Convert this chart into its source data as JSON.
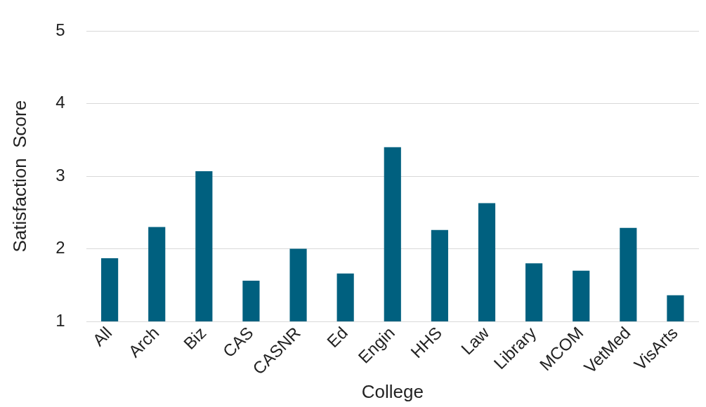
{
  "chart_data": {
    "type": "bar",
    "xlabel": "College",
    "ylabel": "Satisfaction  Score",
    "categories": [
      "All",
      "Arch",
      "Biz",
      "CAS",
      "CASNR",
      "Ed",
      "Engin",
      "HHS",
      "Law",
      "Library",
      "MCOM",
      "VetMed",
      "VisArts"
    ],
    "values": [
      1.87,
      2.3,
      3.07,
      1.56,
      2.0,
      1.66,
      3.4,
      2.26,
      2.63,
      1.8,
      1.7,
      2.29,
      1.36
    ],
    "color": "#00607f",
    "ylim": [
      1,
      5
    ],
    "yticks": [
      1,
      2,
      3,
      4,
      5
    ],
    "grid": "y"
  }
}
